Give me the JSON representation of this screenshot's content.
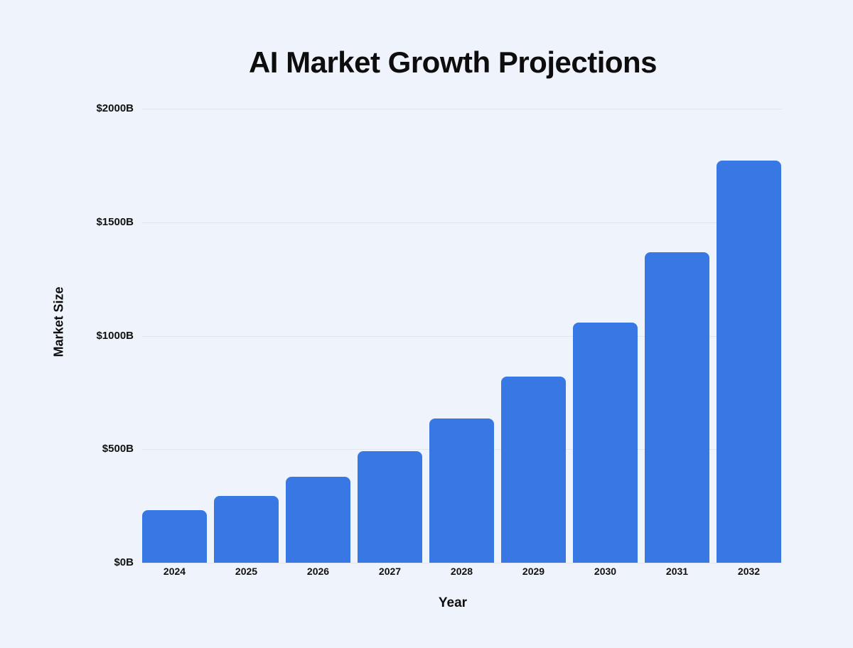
{
  "page": {
    "background_color": "#eff3fb"
  },
  "chart_data": {
    "type": "bar",
    "title": "AI Market Growth Projections",
    "xlabel": "Year",
    "ylabel": "Market Size",
    "categories": [
      "2024",
      "2025",
      "2026",
      "2027",
      "2028",
      "2029",
      "2030",
      "2031",
      "2032"
    ],
    "values": [
      233,
      294,
      380,
      491,
      634,
      820,
      1059,
      1368,
      1772
    ],
    "series_name": "Market Size ($B)",
    "ylim": [
      0,
      2000
    ],
    "yticks": [
      {
        "value": 0,
        "label": "$0B"
      },
      {
        "value": 500,
        "label": "$500B"
      },
      {
        "value": 1000,
        "label": "$1000B"
      },
      {
        "value": 1500,
        "label": "$1500B"
      },
      {
        "value": 2000,
        "label": "$2000B"
      }
    ],
    "grid": "horizontal",
    "legend": "none",
    "bar_color": "#3778e5",
    "gridline_color": "#e2e7ee",
    "text_color": "#0d0d0d",
    "background_color": "#eff3fb"
  }
}
